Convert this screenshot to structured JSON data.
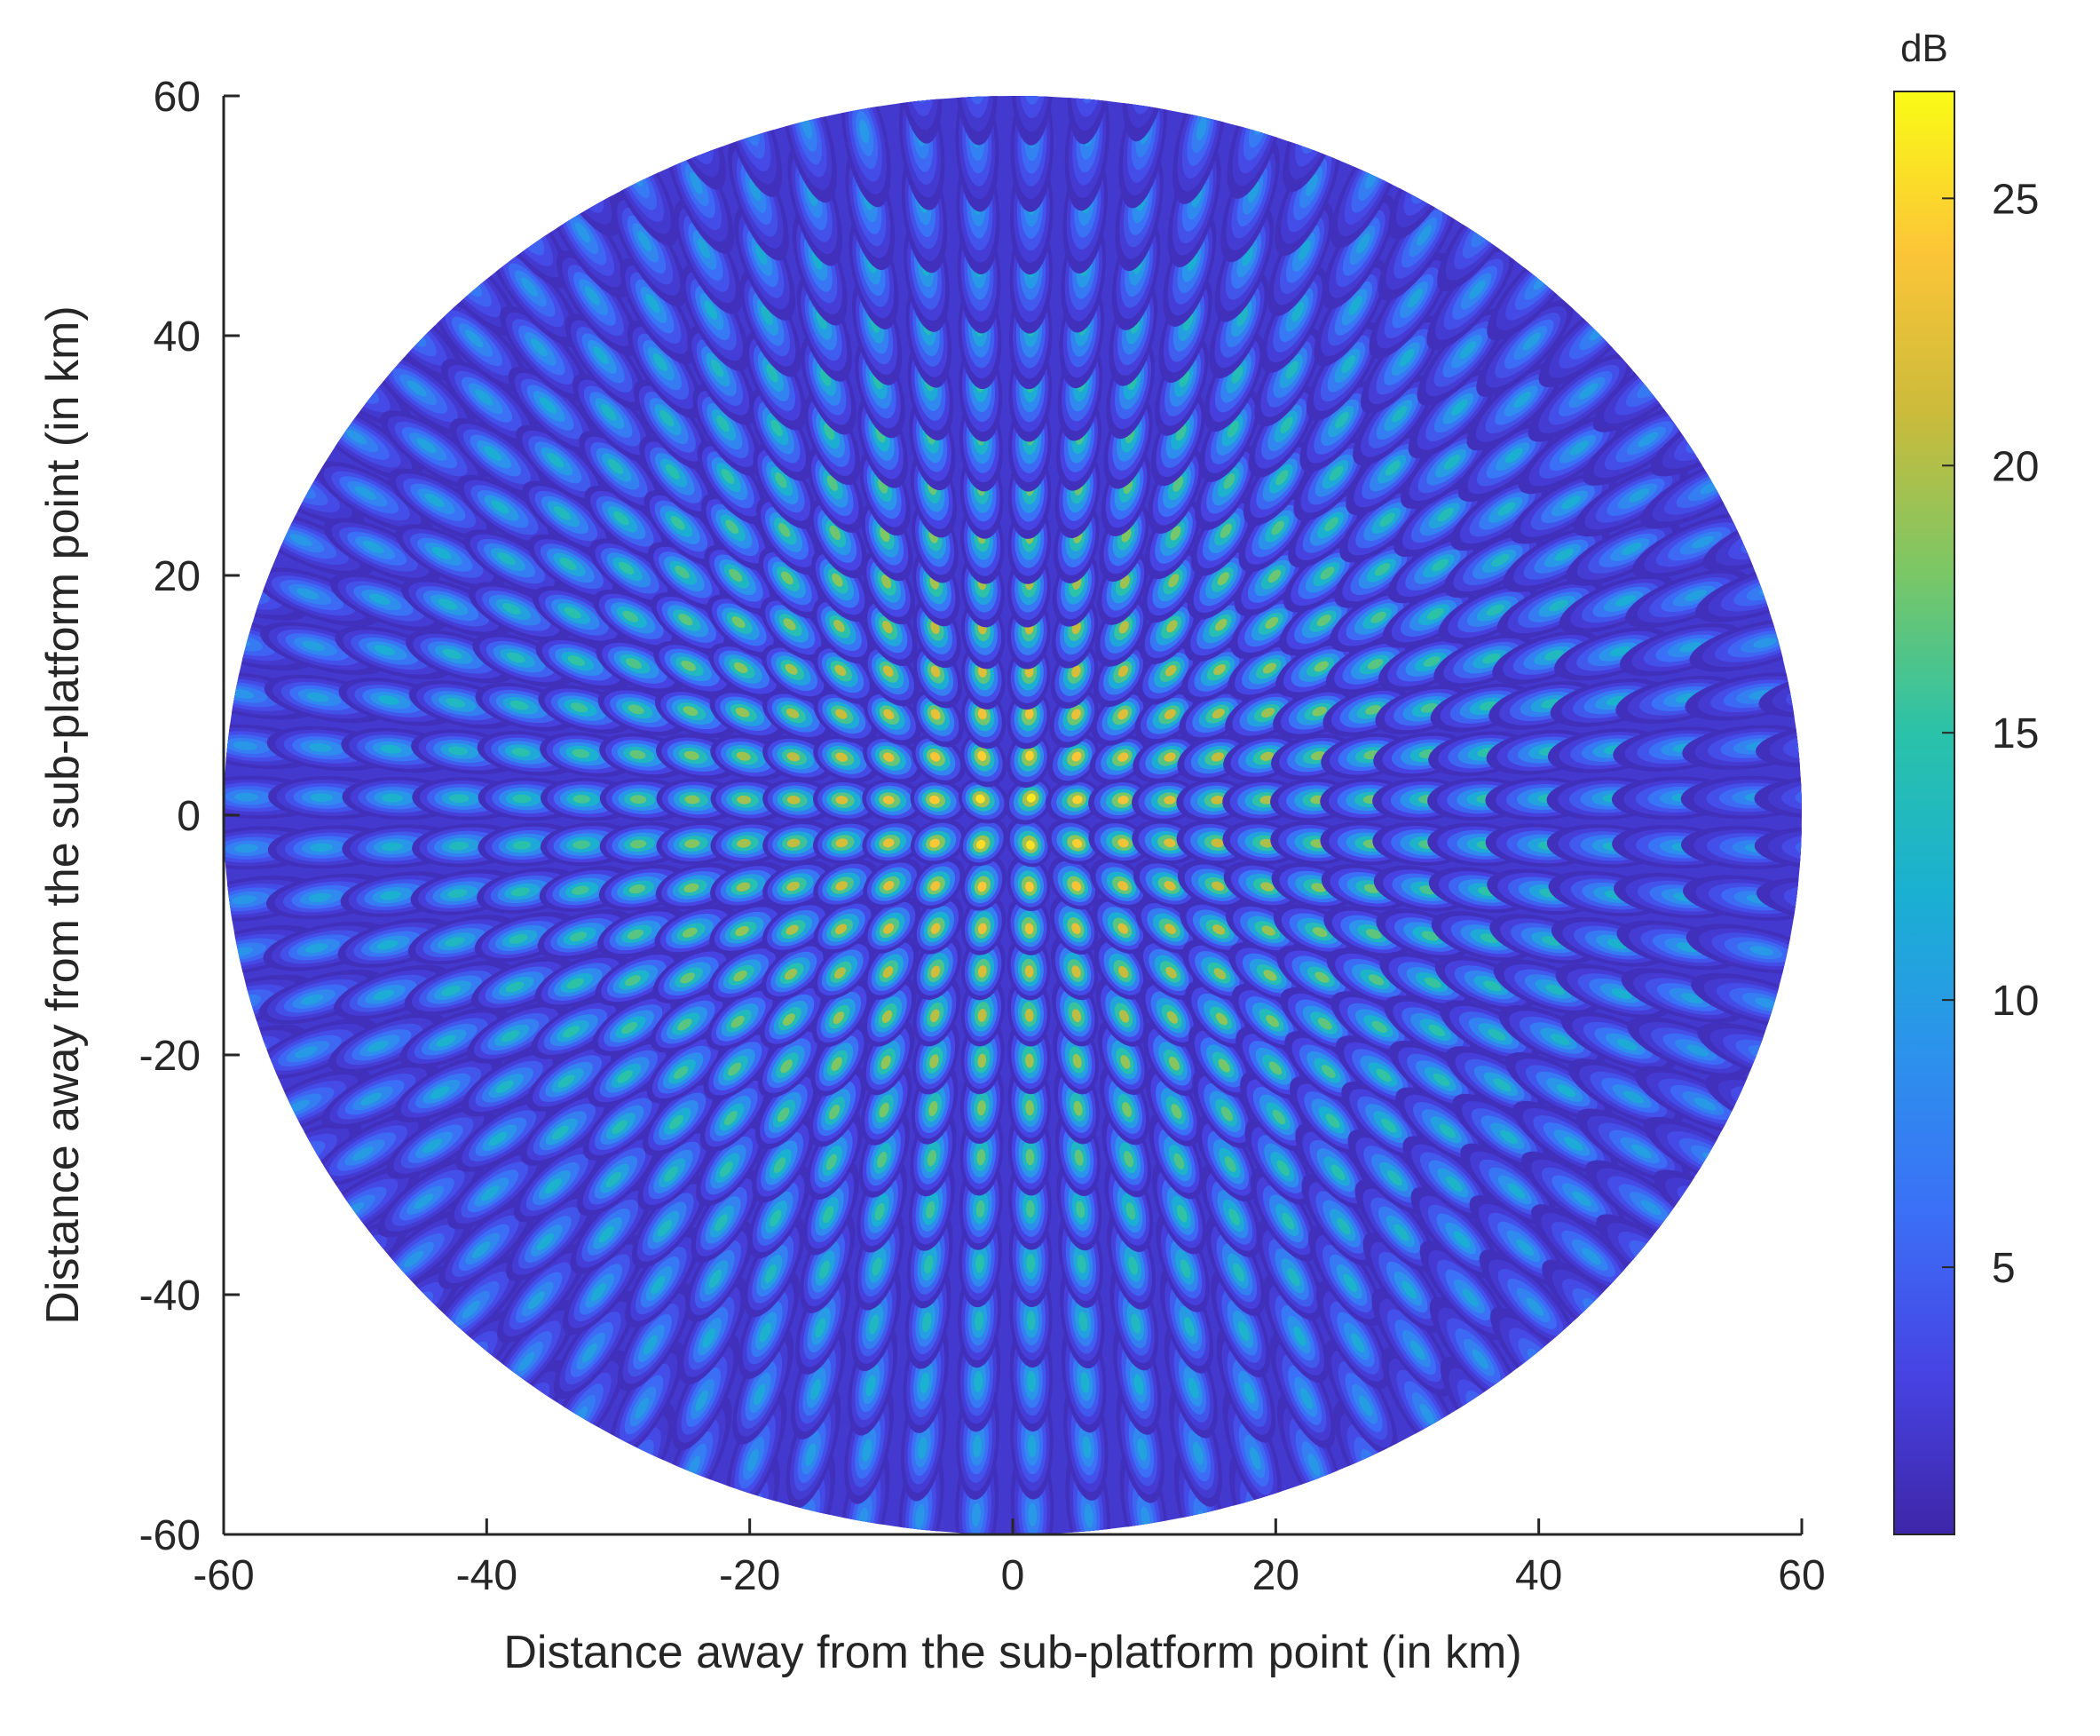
{
  "chart_data": {
    "type": "heatmap",
    "title": "",
    "xlabel": "Distance away from the sub-platform point (in km)",
    "ylabel": "Distance away from the sub-platform point (in km)",
    "xlim": [
      -60,
      60
    ],
    "ylim": [
      -60,
      60
    ],
    "x_ticks": [
      "-60",
      "-40",
      "-20",
      "0",
      "20",
      "40",
      "60"
    ],
    "y_ticks": [
      "60",
      "40",
      "20",
      "0",
      "-20",
      "-40",
      "-60"
    ],
    "x_tick_values": [
      -60,
      -40,
      -20,
      0,
      20,
      40,
      60
    ],
    "y_tick_values": [
      60,
      40,
      20,
      0,
      -20,
      -40,
      -60
    ],
    "coverage_radius_km": 60,
    "colorbar": {
      "title": "dB",
      "range": [
        0,
        27
      ],
      "ticks": [
        "5",
        "10",
        "15",
        "20",
        "25"
      ],
      "tick_values": [
        5,
        10,
        15,
        20,
        25
      ],
      "colormap": "parula"
    },
    "beam_pattern": {
      "description_values": {
        "peak_gain_db_center": 27,
        "beam_edge_gain_db": 1,
        "outer_peak_gain_db": 9
      }
    },
    "grid": false
  },
  "colors": {
    "axis": "#262626",
    "parula_stops": [
      "#3e26a8",
      "#4743e3",
      "#3b6ff7",
      "#2c92ec",
      "#1ab0d2",
      "#2ac2a9",
      "#7ac766",
      "#cbbb3a",
      "#fcc538",
      "#f9fb15"
    ]
  }
}
